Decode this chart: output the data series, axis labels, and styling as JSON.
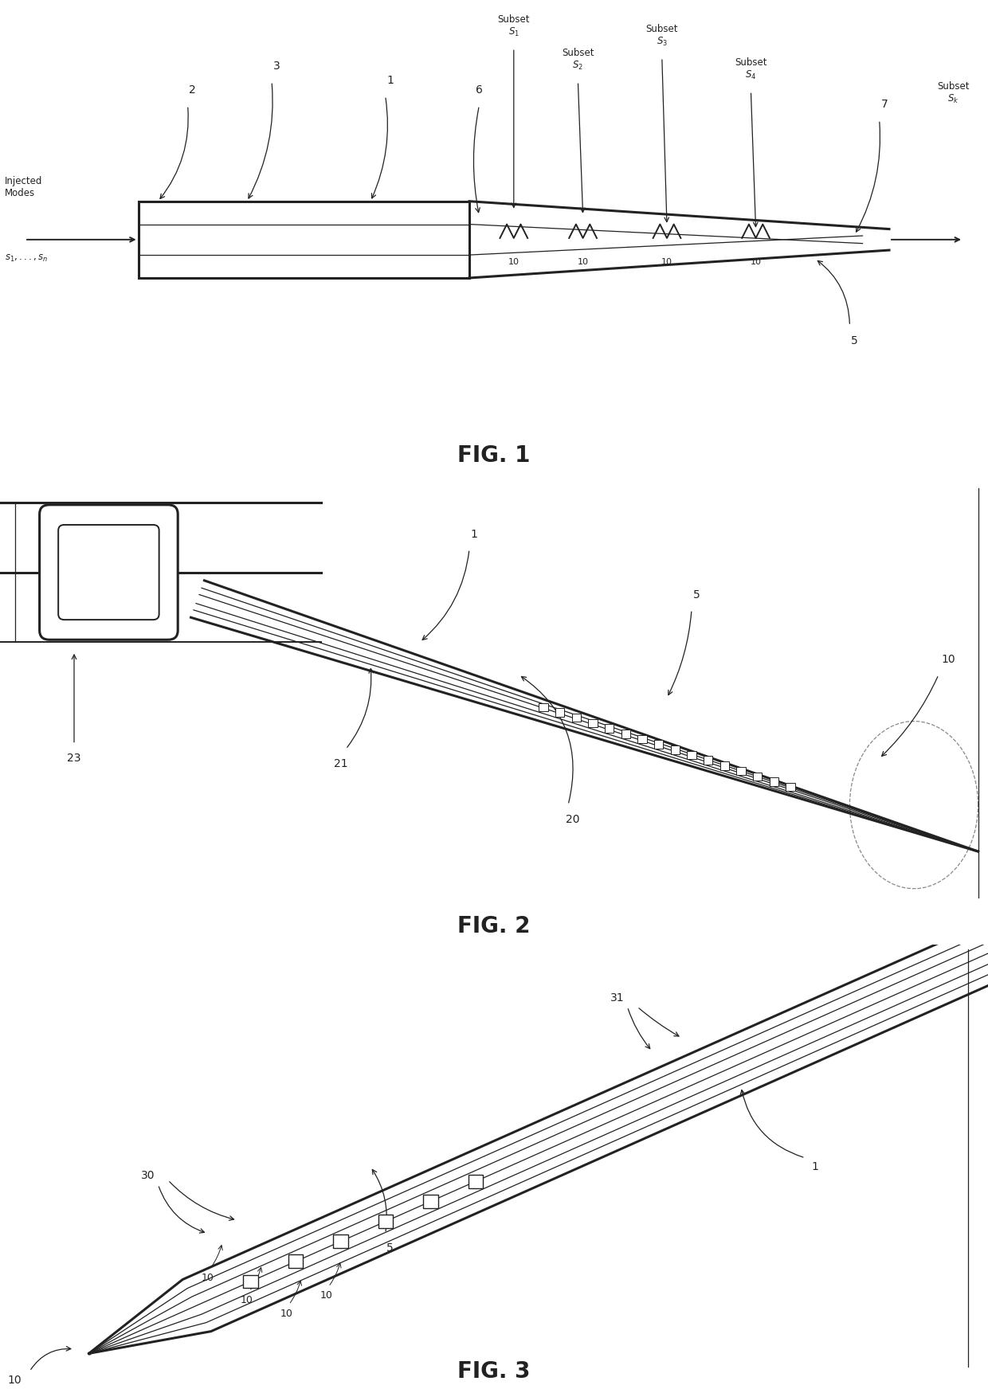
{
  "background_color": "#ffffff",
  "line_color": "#222222",
  "fig_width": 12.4,
  "fig_height": 17.44,
  "fig1_label": "FIG. 1",
  "fig2_label": "FIG. 2",
  "fig3_label": "FIG. 3",
  "fig1_title_fontsize": 20,
  "fig2_title_fontsize": 20,
  "fig3_title_fontsize": 20,
  "label_fontsize": 10,
  "subset_fontsize": 9,
  "lw_thick": 2.2,
  "lw_medium": 1.4,
  "lw_thin": 0.9
}
